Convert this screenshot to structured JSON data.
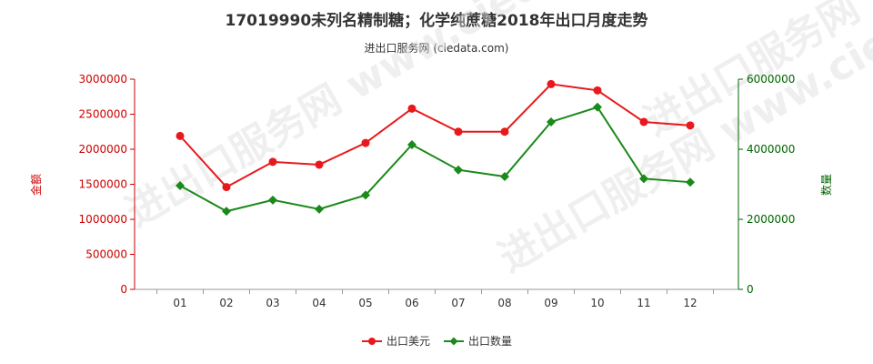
{
  "header": {
    "title": "17019990未列名精制糖；化学纯蔗糖2018年出口月度走势",
    "subtitle": "进出口服务网 (ciedata.com)"
  },
  "watermark": "进出口服务网 www.ciedata.com",
  "colors": {
    "amount": "#e8191c",
    "quantity": "#1a8a1a",
    "left_axis": "#cc0000",
    "right_axis": "#006600"
  },
  "chart_data": {
    "type": "line",
    "categories": [
      "01",
      "02",
      "03",
      "04",
      "05",
      "06",
      "07",
      "08",
      "09",
      "10",
      "11",
      "12"
    ],
    "y_left": {
      "label": "金额",
      "ylim": [
        0,
        3000000
      ],
      "ticks": [
        0,
        500000,
        1000000,
        1500000,
        2000000,
        2500000,
        3000000
      ]
    },
    "y_right": {
      "label": "数量",
      "ylim": [
        0,
        6000000
      ],
      "ticks": [
        0,
        2000000,
        4000000,
        6000000
      ]
    },
    "series": [
      {
        "name": "出口美元",
        "axis": "left",
        "color": "#e8191c",
        "marker": "circle",
        "values": [
          2190000,
          1460000,
          1820000,
          1780000,
          2090000,
          2580000,
          2250000,
          2250000,
          2930000,
          2840000,
          2390000,
          2340000
        ]
      },
      {
        "name": "出口数量",
        "axis": "right",
        "color": "#1a8a1a",
        "marker": "diamond",
        "values": [
          2960000,
          2230000,
          2550000,
          2290000,
          2690000,
          4130000,
          3410000,
          3220000,
          4780000,
          5200000,
          3160000,
          3060000
        ]
      }
    ],
    "legend_position": "bottom-center",
    "grid": false
  }
}
